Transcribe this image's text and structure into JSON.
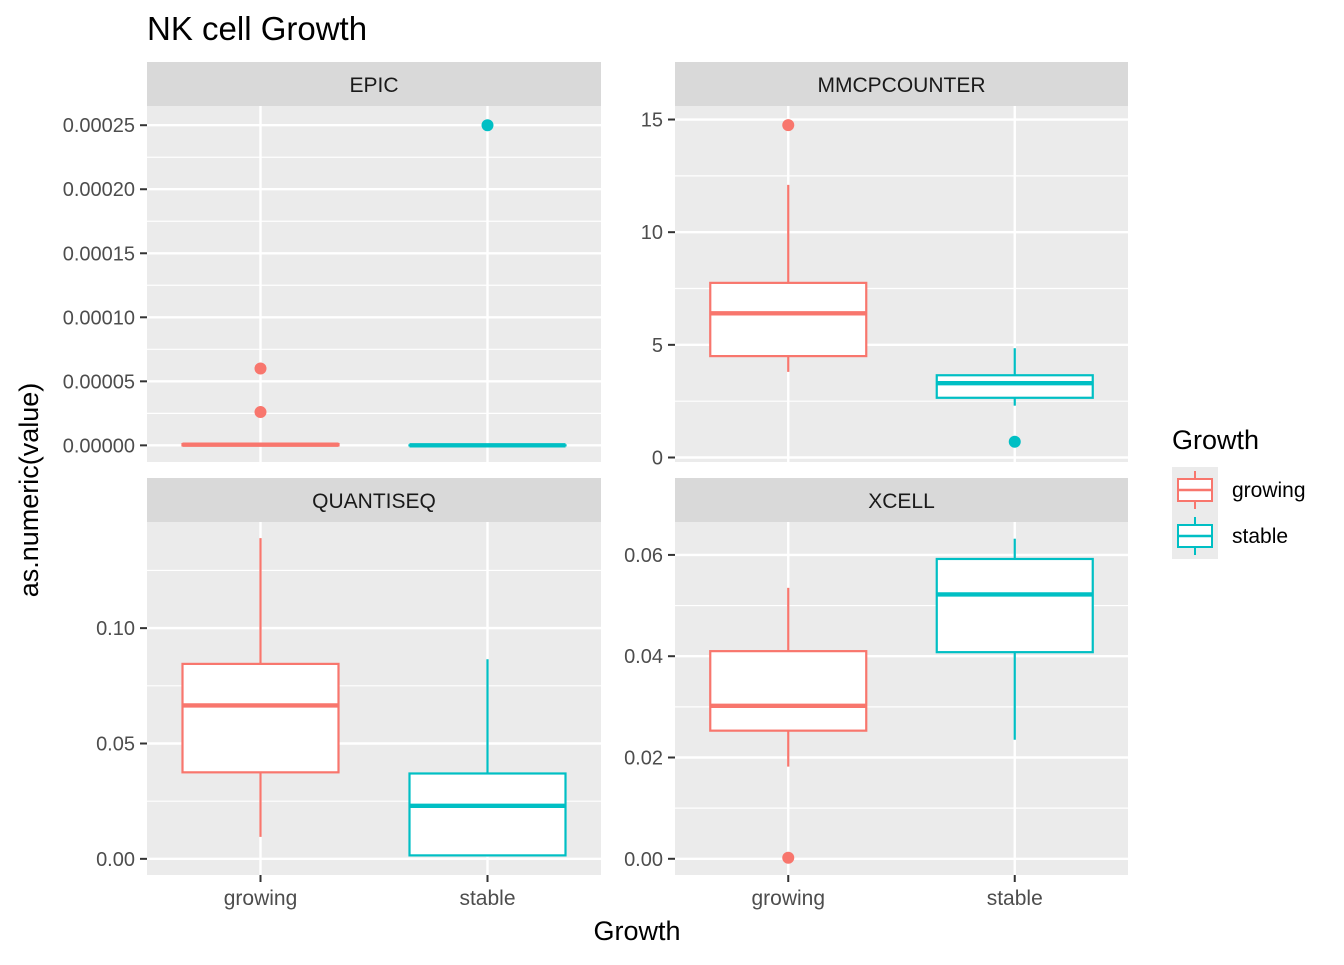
{
  "title": "NK cell Growth",
  "xlabel": "Growth",
  "ylabel": "as.numeric(value)",
  "legend": {
    "title": "Growth",
    "position": "right",
    "entries": [
      {
        "label": "growing",
        "color": "#F8766D"
      },
      {
        "label": "stable",
        "color": "#00BFC4"
      }
    ]
  },
  "colors": {
    "growing": "#F8766D",
    "stable": "#00BFC4",
    "panel_bg": "#EBEBEB",
    "strip_bg": "#D9D9D9",
    "grid": "#FFFFFF"
  },
  "chart_data": [
    {
      "type": "box",
      "facet": "EPIC",
      "categories": [
        "growing",
        "stable"
      ],
      "ylim": [
        -1.3e-05,
        0.000265
      ],
      "yticks": [
        0,
        5e-05,
        0.0001,
        0.00015,
        0.0002,
        0.00025
      ],
      "ytick_labels": [
        "0.00000",
        "0.00005",
        "0.00010",
        "0.00015",
        "0.00020",
        "0.00025"
      ],
      "show_x_tick_labels": false,
      "boxes": [
        {
          "group": "growing",
          "min": 0,
          "q1": 0,
          "median": 5e-07,
          "q3": 1e-06,
          "max": 2e-06,
          "outliers": [
            2.6e-05,
            6e-05
          ]
        },
        {
          "group": "stable",
          "min": 0,
          "q1": 0,
          "median": 0,
          "q3": 0,
          "max": 0,
          "outliers": [
            0.00025
          ]
        }
      ]
    },
    {
      "type": "box",
      "facet": "MMCPCOUNTER",
      "categories": [
        "growing",
        "stable"
      ],
      "ylim": [
        -0.2,
        15.6
      ],
      "yticks": [
        0,
        5,
        10,
        15
      ],
      "ytick_labels": [
        "0",
        "5",
        "10",
        "15"
      ],
      "show_x_tick_labels": false,
      "boxes": [
        {
          "group": "growing",
          "min": 3.8,
          "q1": 4.5,
          "median": 6.4,
          "q3": 7.75,
          "max": 12.1,
          "outliers": [
            14.75
          ]
        },
        {
          "group": "stable",
          "min": 2.3,
          "q1": 2.65,
          "median": 3.3,
          "q3": 3.65,
          "max": 4.85,
          "outliers": [
            0.7
          ]
        }
      ]
    },
    {
      "type": "box",
      "facet": "QUANTISEQ",
      "categories": [
        "growing",
        "stable"
      ],
      "ylim": [
        -0.007,
        0.146
      ],
      "yticks": [
        0,
        0.05,
        0.1
      ],
      "ytick_labels": [
        "0.00",
        "0.05",
        "0.10"
      ],
      "show_x_tick_labels": true,
      "boxes": [
        {
          "group": "growing",
          "min": 0.0095,
          "q1": 0.0375,
          "median": 0.0665,
          "q3": 0.0845,
          "max": 0.139,
          "outliers": []
        },
        {
          "group": "stable",
          "min": 0.001,
          "q1": 0.0015,
          "median": 0.023,
          "q3": 0.037,
          "max": 0.0865,
          "outliers": []
        }
      ]
    },
    {
      "type": "box",
      "facet": "XCELL",
      "categories": [
        "growing",
        "stable"
      ],
      "ylim": [
        -0.0032,
        0.0665
      ],
      "yticks": [
        0,
        0.02,
        0.04,
        0.06
      ],
      "ytick_labels": [
        "0.00",
        "0.02",
        "0.04",
        "0.06"
      ],
      "show_x_tick_labels": true,
      "boxes": [
        {
          "group": "growing",
          "min": 0.0182,
          "q1": 0.0253,
          "median": 0.0302,
          "q3": 0.041,
          "max": 0.0535,
          "outliers": [
            0.0002
          ]
        },
        {
          "group": "stable",
          "min": 0.0235,
          "q1": 0.0408,
          "median": 0.0522,
          "q3": 0.0592,
          "max": 0.0632,
          "outliers": []
        }
      ]
    }
  ]
}
